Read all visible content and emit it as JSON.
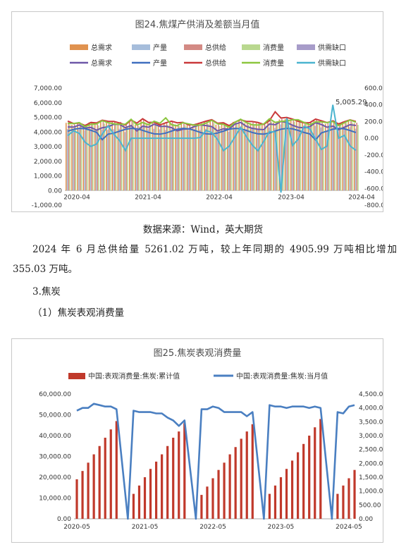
{
  "chart1": {
    "title": "图24.焦煤产供消及差额当月值",
    "legend_bars": [
      "总需求",
      "产量",
      "总供给",
      "消费量",
      "供需缺口"
    ],
    "legend_lines": [
      "总需求",
      "产量",
      "总供给",
      "消费量",
      "供需缺口"
    ],
    "colors": {
      "bar_demand": "#e0924f",
      "bar_production": "#a6bddb",
      "bar_supply": "#d38a84",
      "bar_consumption": "#b9d88f",
      "bar_gap": "#a79cc9",
      "line_demand": "#6e58a8",
      "line_production": "#3f6fbf",
      "line_supply": "#c9393a",
      "line_consumption": "#8cc63f",
      "line_gap": "#4bb4cf"
    },
    "left_ticks": [
      "7,000.00",
      "6,000.00",
      "5,000.00",
      "4,000.00",
      "3,000.00",
      "2,000.00",
      "1,000.00",
      "0.00",
      "-1,000.00"
    ],
    "right_ticks": [
      "600.00",
      "400.00",
      "200.00",
      "0.00",
      "-200.00",
      "-400.00",
      "-600.00",
      "-800.00"
    ],
    "x_ticks": [
      "2020-04",
      "2021-04",
      "2022-04",
      "2023-04",
      "2024-04"
    ],
    "annotation": "5,005.29",
    "source": "数据来源：Wind，英大期货"
  },
  "text": {
    "paragraph": "2024 年 6 月总供给量 5261.02 万吨，较上年同期的 4905.99 万吨相比增加 355.03 万吨。",
    "section_heading": "3.焦炭",
    "sub_heading": "（1）焦炭表观消费量"
  },
  "chart2": {
    "title": "图25.焦炭表观消费量",
    "legend_bar": "中国:表观消费量:焦炭:累计值",
    "legend_line": "中国:表观消费量:焦炭:当月值",
    "colors": {
      "bar": "#c0392b",
      "line": "#4a7fc1"
    },
    "left_ticks": [
      "60,000.00",
      "50,000.00",
      "40,000.00",
      "30,000.00",
      "20,000.00",
      "10,000.00",
      "0.00"
    ],
    "right_ticks": [
      "4,500.00",
      "4,000.00",
      "3,500.00",
      "3,000.00",
      "2,500.00",
      "2,000.00",
      "1,500.00",
      "1,000.00",
      "500.00",
      "0.00"
    ],
    "x_ticks": [
      "2020-05",
      "2021-05",
      "2022-05",
      "2023-05",
      "2024-05"
    ]
  },
  "chart_data": [
    {
      "type": "bar",
      "title": "图24.焦煤产供消及差额当月值",
      "x_range": [
        "2020-04",
        "2024-06"
      ],
      "ylim_left": [
        -1000,
        7000
      ],
      "ylim_right": [
        -800,
        600
      ],
      "approx_levels": {
        "total_demand": [
          4500,
          5000
        ],
        "production": [
          3800,
          4300
        ],
        "total_supply": [
          4500,
          5200
        ],
        "consumption": [
          4400,
          5000
        ],
        "supply_gap_range": [
          -650,
          400
        ]
      },
      "annotation": "5,005.29"
    },
    {
      "type": "bar",
      "title": "图25.焦炭表观消费量",
      "series": [
        {
          "name": "中国:表观消费量:焦炭:累计值",
          "x": [
            "2020-05",
            "2020-06",
            "2020-07",
            "2020-08",
            "2020-09",
            "2020-10",
            "2020-11",
            "2020-12",
            "2021-03",
            "2021-04",
            "2021-05",
            "2021-06",
            "2021-07",
            "2021-08",
            "2021-09",
            "2021-10",
            "2021-11",
            "2021-12",
            "2022-03",
            "2022-04",
            "2022-05",
            "2022-06",
            "2022-07",
            "2022-08",
            "2022-09",
            "2022-10",
            "2022-11",
            "2022-12",
            "2023-03",
            "2023-04",
            "2023-05",
            "2023-06",
            "2023-07",
            "2023-08",
            "2023-09",
            "2023-10",
            "2023-11",
            "2023-12",
            "2024-03",
            "2024-04",
            "2024-05",
            "2024-06"
          ],
          "values": [
            19000,
            23000,
            27000,
            31000,
            35000,
            39000,
            43000,
            47000,
            12000,
            16000,
            20000,
            24000,
            27500,
            31000,
            35000,
            39000,
            42000,
            46000,
            11500,
            15500,
            19500,
            23500,
            27000,
            31000,
            34500,
            38500,
            42000,
            45500,
            12000,
            16000,
            20000,
            24000,
            28000,
            32000,
            36000,
            40000,
            44000,
            48000,
            12000,
            16000,
            19500,
            23500
          ]
        },
        {
          "name": "中国:表观消费量:焦炭:当月值",
          "x": [
            "2020-05",
            "2020-06",
            "2020-07",
            "2020-08",
            "2020-09",
            "2020-10",
            "2020-11",
            "2020-12",
            "2021-02",
            "2021-03",
            "2021-04",
            "2021-05",
            "2021-06",
            "2021-07",
            "2021-08",
            "2021-09",
            "2021-10",
            "2021-11",
            "2021-12",
            "2022-02",
            "2022-03",
            "2022-04",
            "2022-05",
            "2022-06",
            "2022-07",
            "2022-08",
            "2022-09",
            "2022-10",
            "2022-11",
            "2022-12",
            "2023-02",
            "2023-03",
            "2023-04",
            "2023-05",
            "2023-06",
            "2023-07",
            "2023-08",
            "2023-09",
            "2023-10",
            "2023-11",
            "2023-12",
            "2024-02",
            "2024-03",
            "2024-04",
            "2024-05",
            "2024-06"
          ],
          "values": [
            3900,
            4000,
            4000,
            4150,
            4100,
            4050,
            4050,
            3950,
            0,
            3900,
            3850,
            3850,
            3850,
            3800,
            3800,
            3650,
            3550,
            3350,
            3550,
            0,
            3950,
            3950,
            4050,
            4000,
            3850,
            3850,
            3850,
            3850,
            3700,
            3850,
            0,
            4100,
            4050,
            4050,
            4000,
            4050,
            4050,
            4050,
            4000,
            4050,
            4000,
            0,
            3850,
            3800,
            4050,
            4100
          ]
        }
      ],
      "ylim_left": [
        0,
        60000
      ],
      "ylim_right": [
        0,
        4500
      ]
    }
  ]
}
